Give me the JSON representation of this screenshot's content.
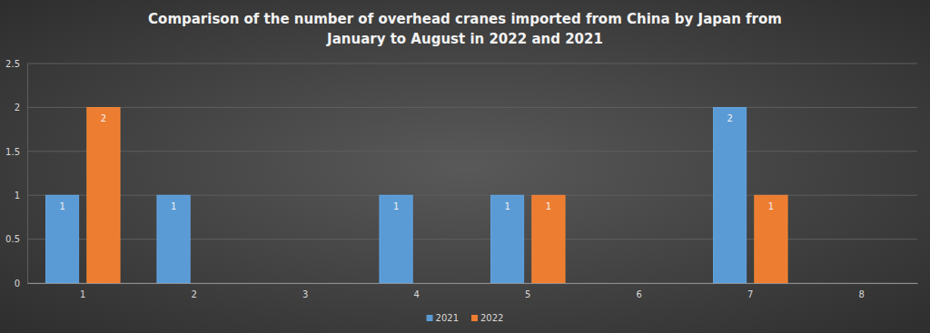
{
  "chart_data": {
    "type": "bar",
    "title": "Comparison of the number of overhead cranes imported from China by Japan from January to August in 2022 and 2021",
    "categories": [
      "1",
      "2",
      "3",
      "4",
      "5",
      "6",
      "7",
      "8"
    ],
    "series": [
      {
        "name": "2021",
        "color": "#5b9bd5",
        "values": [
          1,
          1,
          null,
          1,
          1,
          null,
          2,
          null
        ]
      },
      {
        "name": "2022",
        "color": "#ed7d31",
        "values": [
          2,
          null,
          null,
          null,
          1,
          null,
          1,
          null
        ]
      }
    ],
    "ylim": [
      0,
      2.5
    ],
    "yticks": [
      0,
      0.5,
      1,
      1.5,
      2,
      2.5
    ],
    "grid": true,
    "data_labels": true,
    "legend": "bottom"
  }
}
